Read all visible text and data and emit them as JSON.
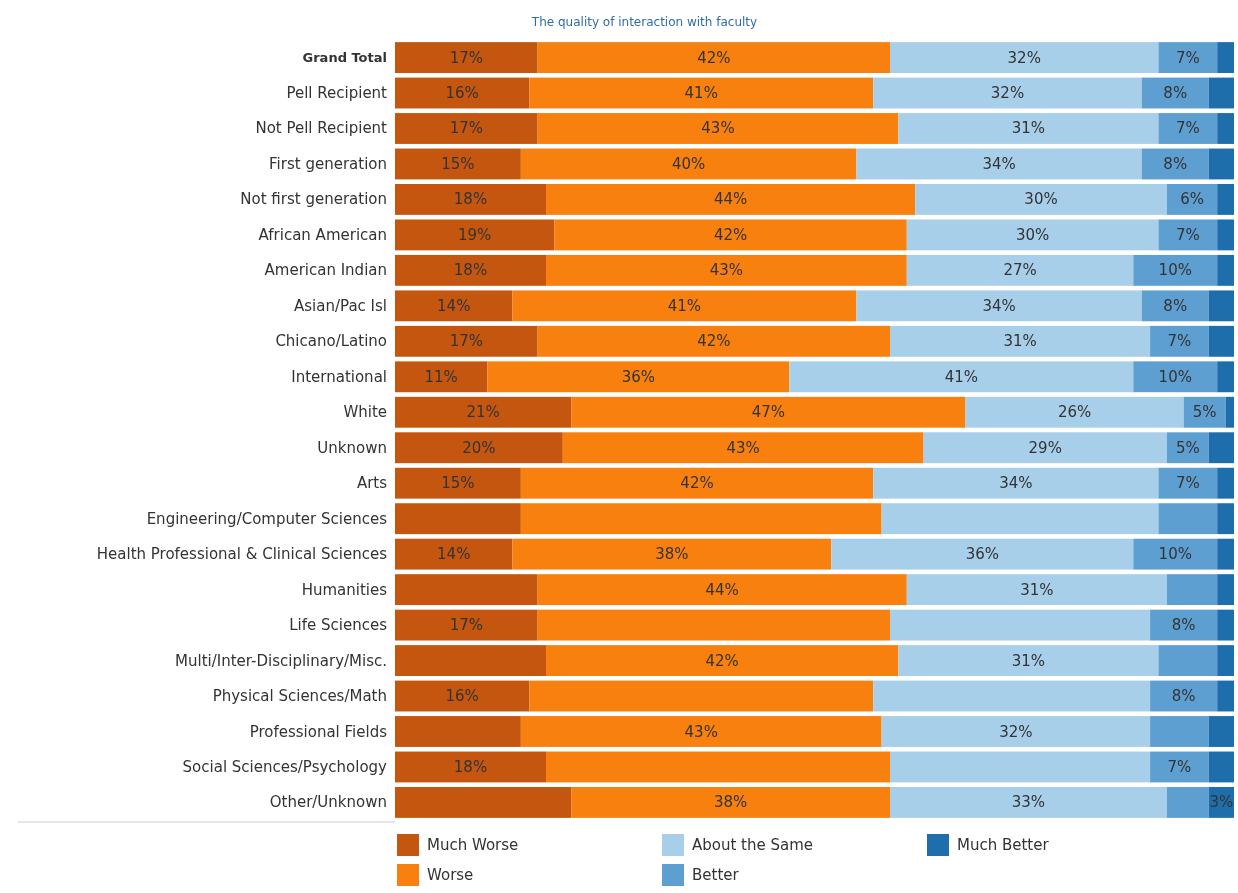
{
  "chart_data": {
    "type": "bar",
    "orientation": "horizontal",
    "stacked": true,
    "title": "The quality of interaction with faculty",
    "categories": [
      "Grand Total",
      "Pell Recipient",
      "Not Pell Recipient",
      "First generation",
      "Not first generation",
      "African American",
      "American Indian",
      "Asian/Pac Isl",
      "Chicano/Latino",
      "International",
      "White",
      "Unknown",
      "Arts",
      "Engineering/Computer Sciences",
      "Health Professional & Clinical Sciences",
      "Humanities",
      "Life Sciences",
      "Multi/Inter-Disciplinary/Misc.",
      "Physical Sciences/Math",
      "Professional Fields",
      "Social Sciences/Psychology",
      "Other/Unknown"
    ],
    "xlim": [
      0,
      100
    ],
    "legend": "bottom",
    "series": [
      {
        "name": "Much Worse",
        "color": "#c5560f",
        "values": [
          17,
          16,
          17,
          15,
          18,
          19,
          18,
          14,
          17,
          11,
          21,
          20,
          15,
          15,
          14,
          17,
          17,
          18,
          16,
          15,
          18,
          21
        ],
        "value_labels": [
          "17%",
          "16%",
          "17%",
          "15%",
          "18%",
          "19%",
          "18%",
          "14%",
          "17%",
          "11%",
          "21%",
          "20%",
          "15%",
          null,
          "14%",
          null,
          "17%",
          null,
          "16%",
          null,
          "18%",
          null
        ]
      },
      {
        "name": "Worse",
        "color": "#f7800f",
        "values": [
          42,
          41,
          43,
          40,
          44,
          42,
          43,
          41,
          42,
          36,
          47,
          43,
          42,
          43,
          38,
          44,
          42,
          42,
          41,
          43,
          41,
          38
        ],
        "value_labels": [
          "42%",
          "41%",
          "43%",
          "40%",
          "44%",
          "42%",
          "43%",
          "41%",
          "42%",
          "36%",
          "47%",
          "43%",
          "42%",
          null,
          "38%",
          "44%",
          null,
          "42%",
          null,
          "43%",
          null,
          "38%"
        ]
      },
      {
        "name": "About the Same",
        "color": "#a8cfea",
        "values": [
          32,
          32,
          31,
          34,
          30,
          30,
          27,
          34,
          31,
          41,
          26,
          29,
          34,
          33,
          36,
          31,
          31,
          31,
          33,
          32,
          31,
          33
        ],
        "value_labels": [
          "32%",
          "32%",
          "31%",
          "34%",
          "30%",
          "30%",
          "27%",
          "34%",
          "31%",
          "41%",
          "26%",
          "29%",
          "34%",
          null,
          "36%",
          "31%",
          null,
          "31%",
          null,
          "32%",
          null,
          "33%"
        ]
      },
      {
        "name": "Better",
        "color": "#5e9fd2",
        "values": [
          7,
          8,
          7,
          8,
          6,
          7,
          10,
          8,
          7,
          10,
          5,
          5,
          7,
          7,
          10,
          6,
          8,
          7,
          8,
          7,
          7,
          5
        ],
        "value_labels": [
          "7%",
          "8%",
          "7%",
          "8%",
          "6%",
          "7%",
          "10%",
          "8%",
          "7%",
          "10%",
          "5%",
          "5%",
          "7%",
          null,
          "10%",
          null,
          "8%",
          null,
          "8%",
          null,
          "7%",
          null
        ]
      },
      {
        "name": "Much Better",
        "color": "#1d6eab",
        "values": [
          2,
          3,
          2,
          3,
          2,
          2,
          2,
          3,
          3,
          2,
          1,
          3,
          2,
          2,
          2,
          2,
          2,
          2,
          2,
          3,
          3,
          3
        ],
        "value_labels": [
          null,
          null,
          null,
          null,
          null,
          null,
          null,
          null,
          null,
          null,
          null,
          null,
          null,
          null,
          null,
          null,
          null,
          null,
          null,
          null,
          null,
          "3%"
        ]
      }
    ]
  }
}
